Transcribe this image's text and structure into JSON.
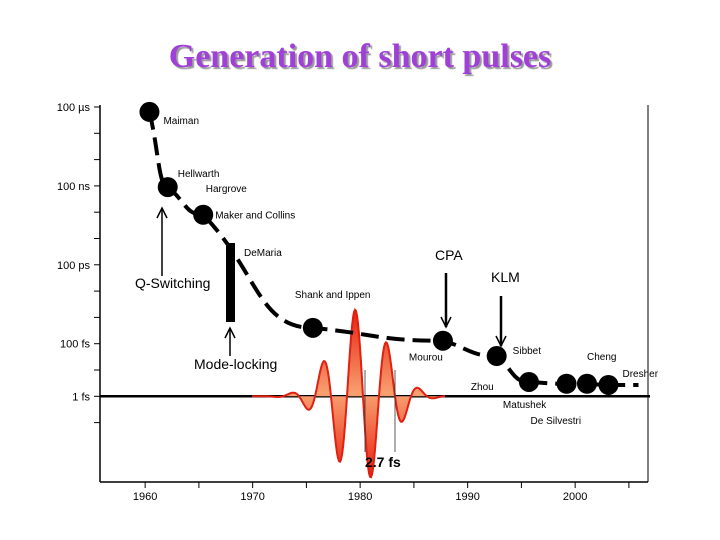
{
  "title": "Generation of short pulses",
  "chart_data": {
    "type": "scatter",
    "title": "Generation of short pulses",
    "xlabel": "",
    "ylabel": "",
    "y_scale": "log",
    "xlim": [
      1956,
      2006
    ],
    "ylim_seconds": [
      1e-16,
      0.0001
    ],
    "x_ticks": [
      1960,
      1970,
      1980,
      1990,
      2000
    ],
    "x_tick_labels": [
      "1960",
      "1970",
      "1980",
      "1990",
      "2000"
    ],
    "y_ticks_seconds": [
      0.0001,
      1e-07,
      1e-10,
      1e-13,
      1e-15
    ],
    "y_tick_labels": [
      "100 µs",
      "100 ns",
      "100 ps",
      "100 fs",
      "1 fs"
    ],
    "points": [
      {
        "year": 1960.4,
        "duration_s": 6.5e-05,
        "label": "Maiman"
      },
      {
        "year": 1962.1,
        "duration_s": 9e-08,
        "label": "Hellwarth",
        "label2": "Hargrove"
      },
      {
        "year": 1965.4,
        "duration_s": 8e-09,
        "label": "Maker and Collins"
      },
      {
        "year": 1975.6,
        "duration_s": 4e-13,
        "label": "Shank and Ippen"
      },
      {
        "year": 1987.7,
        "duration_s": 1.3e-13,
        "label": "Mourou"
      },
      {
        "year": 1992.7,
        "duration_s": 3.4e-14,
        "label": "Sibbet"
      },
      {
        "year": 1995.7,
        "duration_s": 3.5e-15,
        "label": "Zhou",
        "label2": "Matushek"
      },
      {
        "year": 1999.2,
        "duration_s": 3e-15,
        "label": "De Silvestri"
      },
      {
        "year": 2001.1,
        "duration_s": 3e-15,
        "label": "Cheng"
      },
      {
        "year": 2003.1,
        "duration_s": 2.7e-15,
        "label": "Dresher"
      }
    ],
    "trend_line": "dashed",
    "reference_line_seconds": 1e-15,
    "annotations": [
      {
        "text": "Q-Switching",
        "arrow": "up"
      },
      {
        "text": "Mode-locking",
        "arrow": "up"
      },
      {
        "text": "DeMaria",
        "marker": "vertical-bar"
      },
      {
        "text": "CPA",
        "arrow": "down"
      },
      {
        "text": "KLM",
        "arrow": "down"
      },
      {
        "text": "2.7 fs",
        "marker": "pulse-waveform"
      }
    ],
    "colors": {
      "title": "#a040d8",
      "pulse": "#e02010",
      "pulse_fill": "#f89060",
      "marks": "#000000"
    }
  }
}
